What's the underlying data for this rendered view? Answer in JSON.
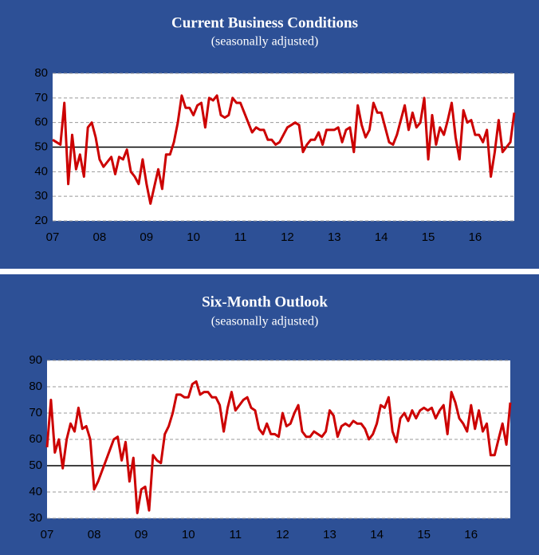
{
  "chart_data": [
    {
      "type": "line",
      "title": "Current  Business Conditions",
      "subtitle": "(seasonally adjusted)",
      "categories": [
        "07",
        null,
        null,
        null,
        null,
        null,
        null,
        null,
        null,
        null,
        null,
        null,
        "08",
        null,
        null,
        null,
        null,
        null,
        null,
        null,
        null,
        null,
        null,
        null,
        "09",
        null,
        null,
        null,
        null,
        null,
        null,
        null,
        null,
        null,
        null,
        null,
        "10",
        null,
        null,
        null,
        null,
        null,
        null,
        null,
        null,
        null,
        null,
        null,
        "11",
        null,
        null,
        null,
        null,
        null,
        null,
        null,
        null,
        null,
        null,
        null,
        "12",
        null,
        null,
        null,
        null,
        null,
        null,
        null,
        null,
        null,
        null,
        null,
        "13",
        null,
        null,
        null,
        null,
        null,
        null,
        null,
        null,
        null,
        null,
        null,
        "14",
        null,
        null,
        null,
        null,
        null,
        null,
        null,
        null,
        null,
        null,
        null,
        "15",
        null,
        null,
        null,
        null,
        null,
        null,
        null,
        null,
        null,
        null,
        null,
        "16",
        null,
        null,
        null,
        null,
        null,
        null,
        null,
        null,
        null,
        null
      ],
      "series": [
        {
          "name": "Current Business Conditions",
          "color": "#cc0000",
          "values": [
            53,
            52,
            51,
            68,
            35,
            55,
            41,
            47,
            38,
            58,
            60,
            54,
            45,
            42,
            44,
            46,
            39,
            46,
            45,
            49,
            40,
            38,
            35,
            45,
            35,
            27,
            34,
            41,
            33,
            47,
            47,
            52,
            60,
            71,
            66,
            66,
            63,
            67,
            68,
            58,
            70,
            69,
            71,
            63,
            62,
            63,
            70,
            68,
            68,
            64,
            60,
            56,
            58,
            57,
            57,
            53,
            53,
            51,
            52,
            55,
            58,
            59,
            60,
            59,
            48,
            51,
            53,
            53,
            56,
            51,
            57,
            57,
            57,
            58,
            52,
            57,
            58,
            48,
            67,
            59,
            54,
            57,
            68,
            64,
            64,
            58,
            52,
            51,
            55,
            61,
            67,
            57,
            64,
            58,
            60,
            70,
            45,
            63,
            51,
            58,
            55,
            61,
            68,
            54,
            45,
            65,
            60,
            61,
            55,
            55,
            52,
            57,
            38,
            48,
            61,
            48,
            50,
            52,
            64
          ]
        }
      ],
      "ylim": [
        20,
        80
      ],
      "yticks": [
        20,
        30,
        40,
        50,
        60,
        70,
        80
      ],
      "grid": true,
      "reference_line": 50
    },
    {
      "type": "line",
      "title": "Six-Month Outlook",
      "subtitle": "(seasonally adjusted)",
      "categories": [
        "07",
        null,
        null,
        null,
        null,
        null,
        null,
        null,
        null,
        null,
        null,
        null,
        "08",
        null,
        null,
        null,
        null,
        null,
        null,
        null,
        null,
        null,
        null,
        null,
        "09",
        null,
        null,
        null,
        null,
        null,
        null,
        null,
        null,
        null,
        null,
        null,
        "10",
        null,
        null,
        null,
        null,
        null,
        null,
        null,
        null,
        null,
        null,
        null,
        "11",
        null,
        null,
        null,
        null,
        null,
        null,
        null,
        null,
        null,
        null,
        null,
        "12",
        null,
        null,
        null,
        null,
        null,
        null,
        null,
        null,
        null,
        null,
        null,
        "13",
        null,
        null,
        null,
        null,
        null,
        null,
        null,
        null,
        null,
        null,
        null,
        "14",
        null,
        null,
        null,
        null,
        null,
        null,
        null,
        null,
        null,
        null,
        null,
        "15",
        null,
        null,
        null,
        null,
        null,
        null,
        null,
        null,
        null,
        null,
        null,
        "16",
        null,
        null,
        null,
        null,
        null,
        null,
        null,
        null,
        null,
        null
      ],
      "series": [
        {
          "name": "Six-Month Outlook",
          "color": "#cc0000",
          "values": [
            57,
            75,
            55,
            60,
            49,
            60,
            66,
            63,
            72,
            64,
            65,
            60,
            41,
            44,
            48,
            52,
            56,
            60,
            61,
            52,
            59,
            44,
            53,
            32,
            41,
            42,
            33,
            54,
            52,
            51,
            62,
            65,
            70,
            77,
            77,
            76,
            76,
            81,
            82,
            77,
            78,
            78,
            76,
            76,
            73,
            63,
            72,
            78,
            71,
            73,
            75,
            76,
            72,
            71,
            64,
            62,
            66,
            62,
            62,
            61,
            70,
            65,
            66,
            70,
            73,
            63,
            61,
            61,
            63,
            62,
            61,
            63,
            71,
            69,
            61,
            65,
            66,
            65,
            67,
            66,
            66,
            64,
            60,
            62,
            66,
            73,
            72,
            76,
            63,
            59,
            68,
            70,
            67,
            71,
            68,
            71,
            72,
            71,
            72,
            68,
            71,
            73,
            62,
            78,
            74,
            68,
            66,
            63,
            73,
            64,
            71,
            63,
            66,
            54,
            54,
            60,
            66,
            58,
            74
          ]
        }
      ],
      "ylim": [
        30,
        90
      ],
      "yticks": [
        30,
        40,
        50,
        60,
        70,
        80,
        90
      ],
      "grid": true,
      "reference_line": 50
    }
  ]
}
